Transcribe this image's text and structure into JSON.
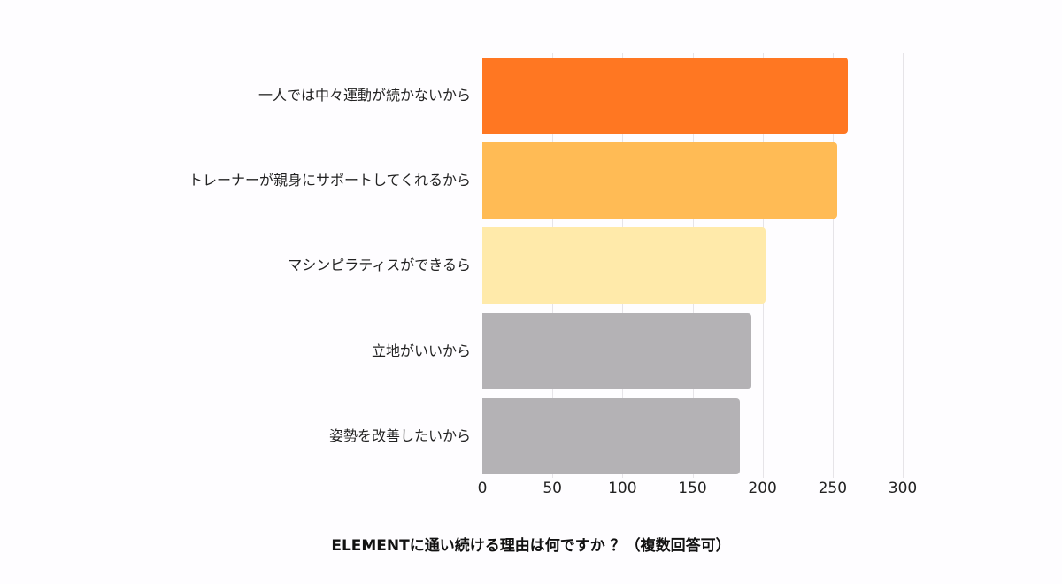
{
  "chart_data": {
    "type": "bar",
    "orientation": "horizontal",
    "title": "ELEMENTに通い続ける理由は何ですか ？（複数回答可）",
    "xlabel": "",
    "ylabel": "",
    "xlim": [
      0,
      300
    ],
    "grid": true,
    "legend": "none",
    "categories": [
      "一人では中々運動が続かないから",
      "トレーナーが親身にサポートしてくれるから",
      "マシンピラティスができるら",
      "立地がいいから",
      "姿勢を改善したいから"
    ],
    "values": [
      261,
      253,
      202,
      192,
      184
    ],
    "colors": [
      "#ff7722",
      "#ffbb55",
      "#ffeaaa",
      "#b4b2b5",
      "#b4b2b5"
    ],
    "x_ticks": [
      "0",
      "50",
      "100",
      "150",
      "200",
      "250",
      "300"
    ]
  }
}
